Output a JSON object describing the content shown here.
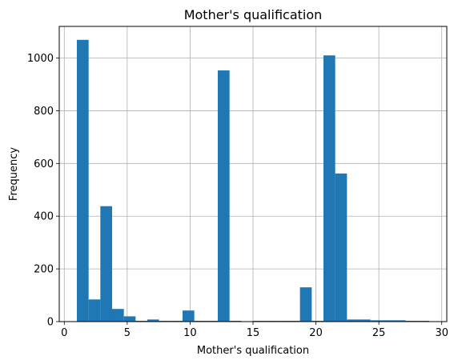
{
  "chart_data": {
    "type": "bar",
    "title": "Mother's qualification",
    "xlabel": "Mother's qualification",
    "ylabel": "Frequency",
    "xlim": [
      -0.4,
      30.4
    ],
    "ylim": [
      0,
      1120
    ],
    "xticks": [
      0,
      5,
      10,
      15,
      20,
      25,
      30
    ],
    "xtick_labels": [
      "0",
      "5",
      "10",
      "15",
      "20",
      "25",
      "30"
    ],
    "yticks": [
      0,
      200,
      400,
      600,
      800,
      1000
    ],
    "ytick_labels": [
      "0",
      "200",
      "400",
      "600",
      "800",
      "1000"
    ],
    "grid": true,
    "bar_color": "#1f77b4",
    "bin_start": 1,
    "bin_width": 0.9333,
    "values": [
      1069,
      84,
      438,
      48,
      20,
      3,
      8,
      3,
      3,
      42,
      3,
      3,
      953,
      3,
      0,
      3,
      3,
      3,
      3,
      130,
      3,
      1010,
      562,
      8,
      8,
      5,
      5,
      5,
      3,
      3
    ]
  }
}
